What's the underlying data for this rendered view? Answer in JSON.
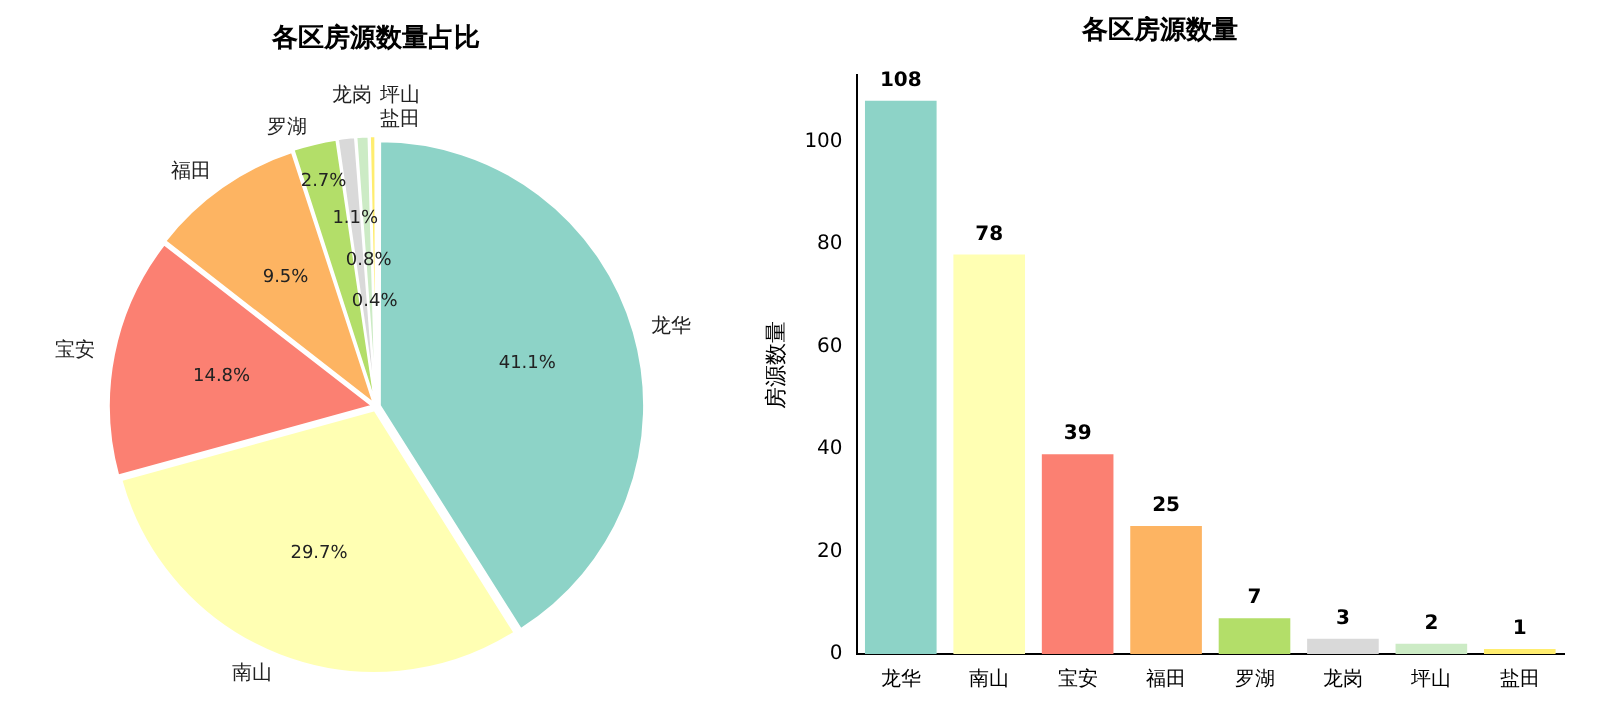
{
  "chart_data": [
    {
      "type": "pie",
      "title": "各区房源数量占比",
      "categories": [
        "龙华",
        "南山",
        "宝安",
        "福田",
        "罗湖",
        "龙岗",
        "坪山",
        "盐田"
      ],
      "values": [
        41.1,
        29.7,
        14.8,
        9.5,
        2.7,
        1.1,
        0.8,
        0.4
      ],
      "value_labels": [
        "41.1%",
        "29.7%",
        "14.8%",
        "9.5%",
        "2.7%",
        "1.1%",
        "0.8%",
        "0.4%"
      ],
      "colors": [
        "#8dd3c7",
        "#ffffb3",
        "#fb8072",
        "#fdb462",
        "#b3de69",
        "#d9d9d9",
        "#ccebc5",
        "#ffed6f"
      ],
      "legend": false
    },
    {
      "type": "bar",
      "title": "各区房源数量",
      "ylabel": "房源数量",
      "categories": [
        "龙华",
        "南山",
        "宝安",
        "福田",
        "罗湖",
        "龙岗",
        "坪山",
        "盐田"
      ],
      "values": [
        108,
        78,
        39,
        25,
        7,
        3,
        2,
        1
      ],
      "colors": [
        "#8dd3c7",
        "#ffffb3",
        "#fb8072",
        "#fdb462",
        "#b3de69",
        "#d9d9d9",
        "#ccebc5",
        "#ffed6f"
      ],
      "ylim": [
        0,
        113
      ],
      "yticks": [
        0,
        20,
        40,
        60,
        80,
        100
      ],
      "data_labels": true,
      "grid": false,
      "legend": false
    }
  ]
}
